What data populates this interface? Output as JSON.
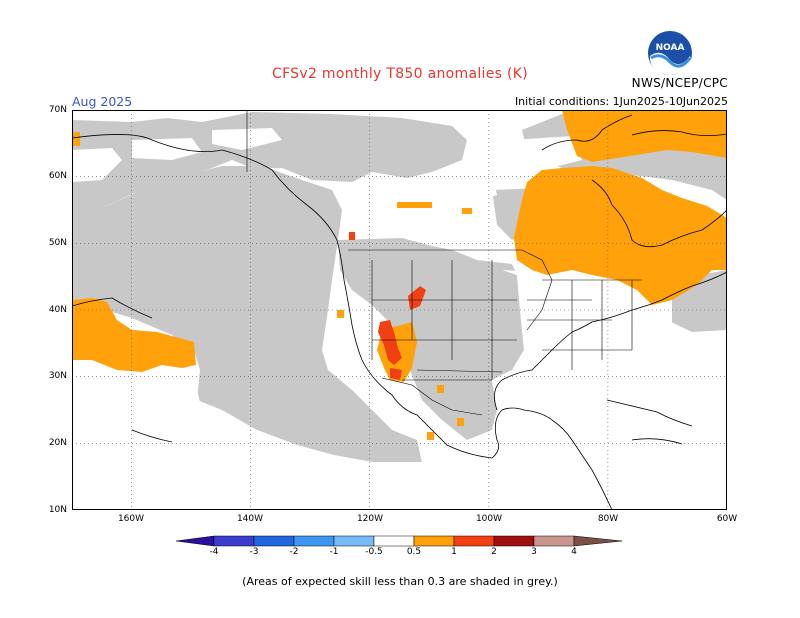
{
  "header": {
    "title": "CFSv2 monthly T850 anomalies (K)",
    "month": "Aug 2025",
    "initial_conditions": "Initial conditions: 1Jun2025-10Jun2025",
    "credit": "NWS/NCEP/CPC",
    "logo_text": "NOAA"
  },
  "map": {
    "lat_labels": [
      "70N",
      "60N",
      "50N",
      "40N",
      "30N",
      "20N",
      "10N"
    ],
    "lon_labels": [
      "160W",
      "140W",
      "120W",
      "100W",
      "80W",
      "60W"
    ],
    "extent": {
      "lon_min": -170,
      "lon_max": -60,
      "lat_min": 10,
      "lat_max": 70
    },
    "colors": {
      "skill_grey": "#c8c8c8",
      "anom_0_5_1": "#ffa10a",
      "anom_1_2": "#f04014",
      "ocean": "#ffffff",
      "coast": "#000000"
    }
  },
  "colorbar": {
    "labels": [
      "-4",
      "-3",
      "-2",
      "-1",
      "-0.5",
      "0.5",
      "1",
      "2",
      "3",
      "4"
    ],
    "colors": [
      "#2a0fa0",
      "#3c3ccc",
      "#2266dd",
      "#3c96f0",
      "#78b9f8",
      "#ffffff",
      "#ffa10a",
      "#f04014",
      "#d2301e",
      "#a00f0f",
      "#c8968c",
      "#7a5046"
    ]
  },
  "footnote": "(Areas of expected skill less than 0.3 are shaded in grey.)"
}
